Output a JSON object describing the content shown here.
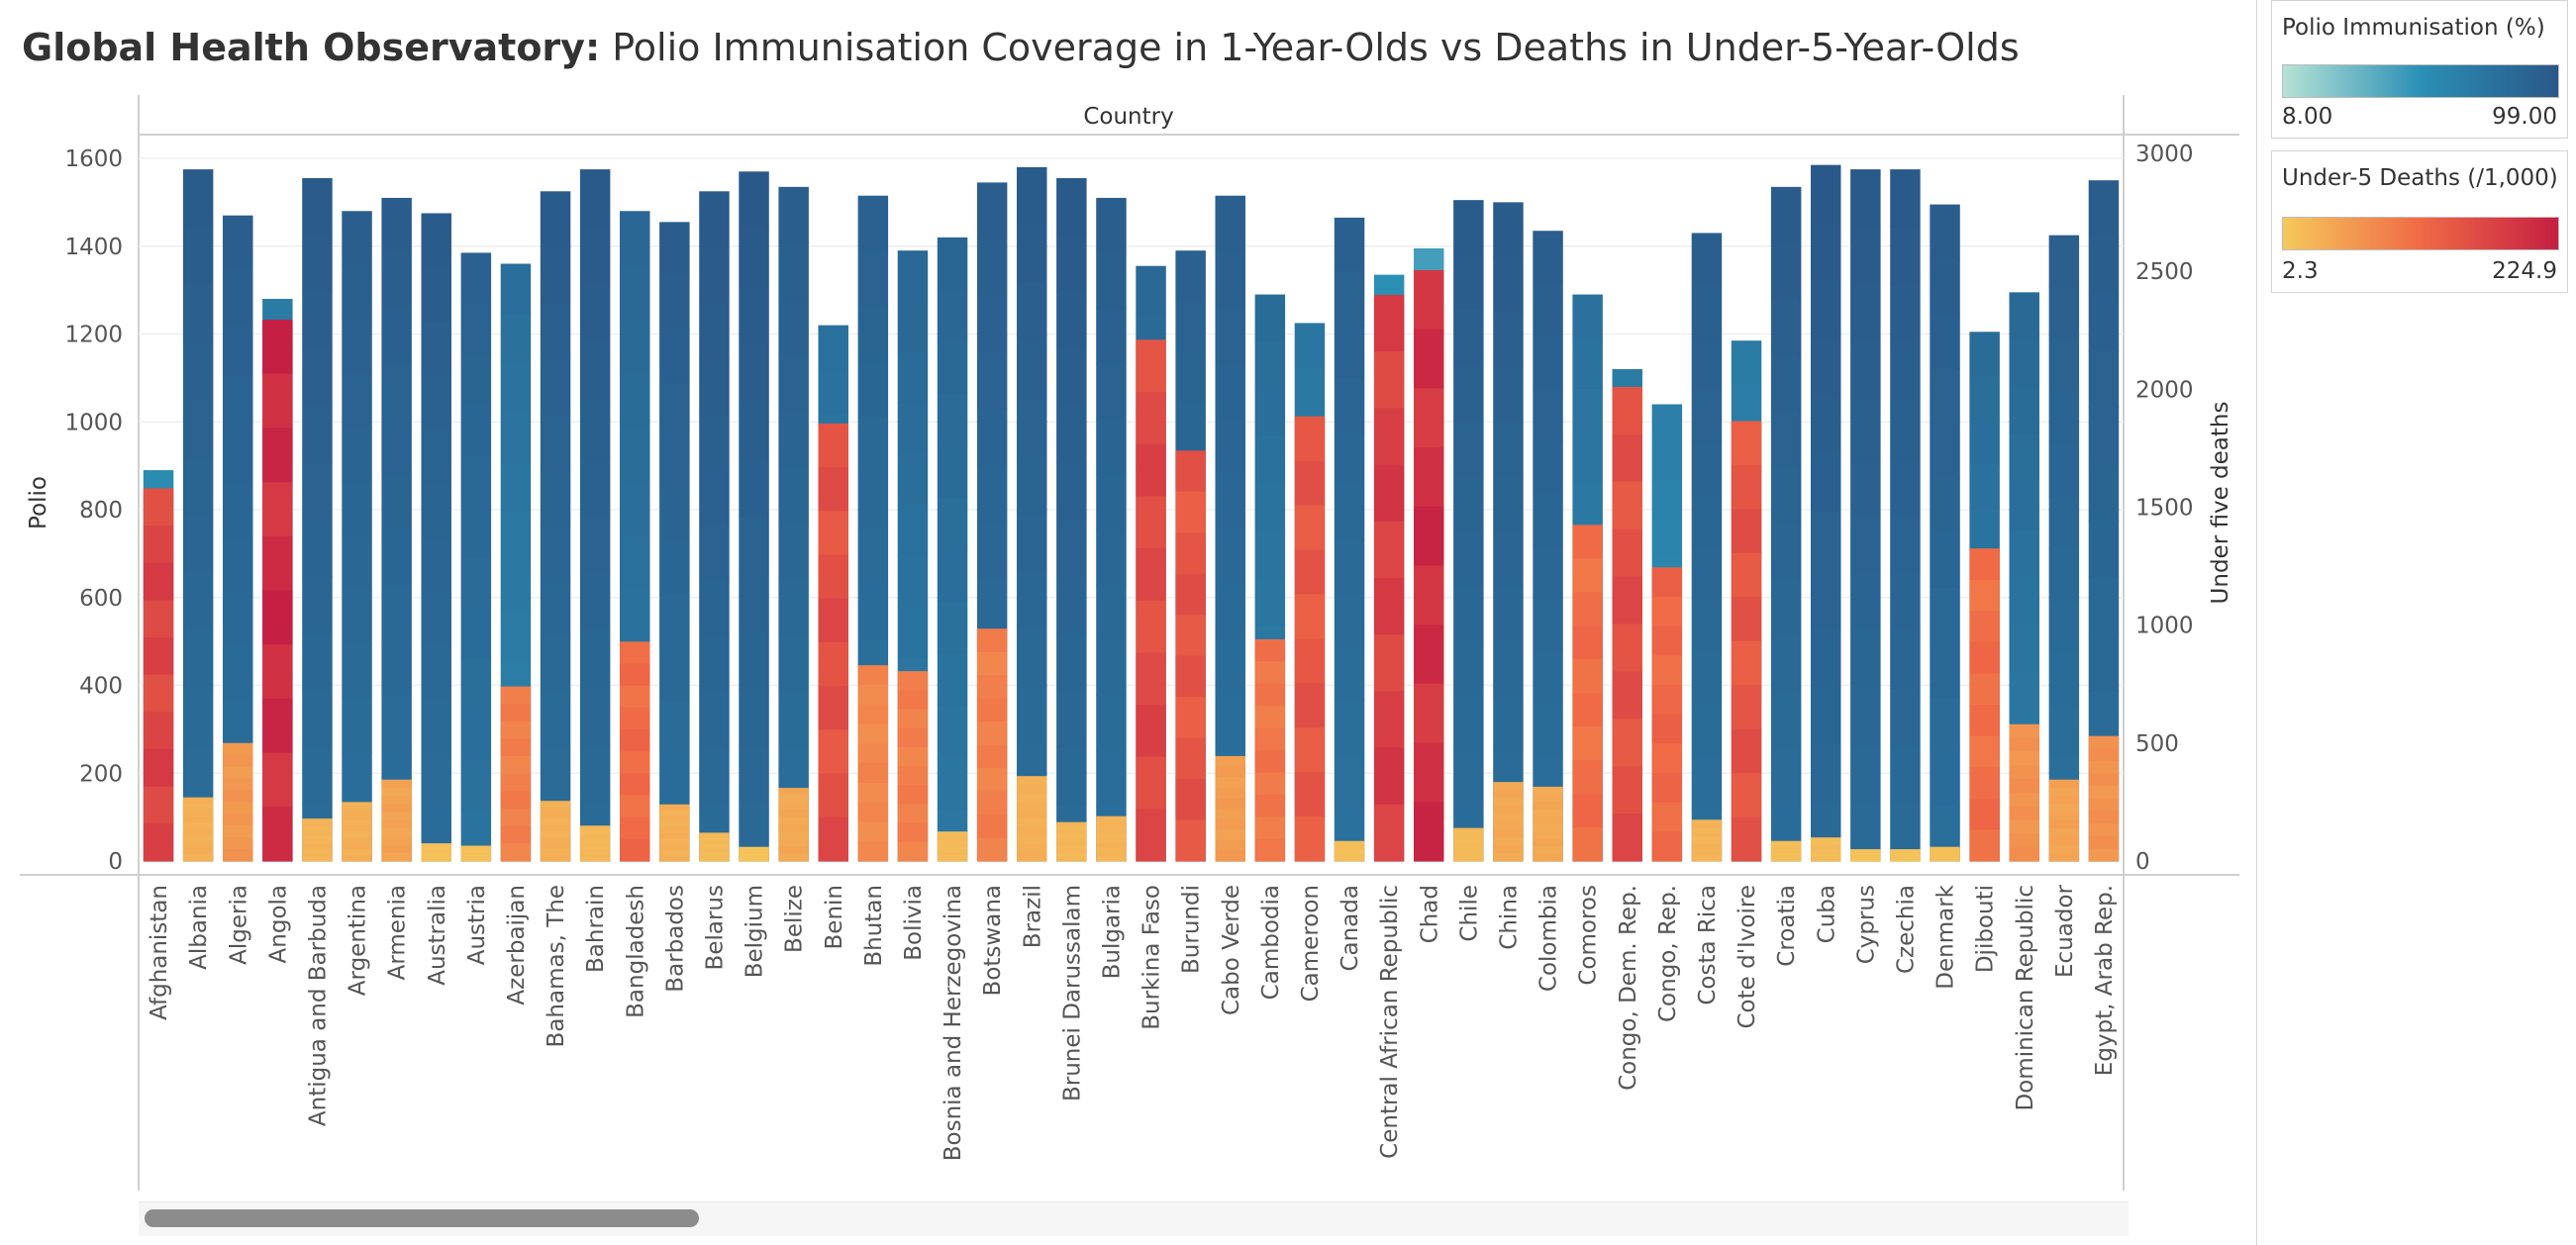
{
  "title": {
    "bold": "Global Health Observatory:",
    "rest": " Polio Immunisation Coverage in 1-Year-Olds vs Deaths in Under-5-Year-Olds"
  },
  "legend_polio": {
    "title": "Polio Immunisation (%)",
    "min": "8.00",
    "max": "99.00",
    "colors": [
      "#b7e3d6",
      "#2b8fb5",
      "#2a5888"
    ]
  },
  "legend_deaths": {
    "title": "Under-5 Deaths (/1,000)",
    "min": "2.3",
    "max": "224.9",
    "colors": [
      "#f5c95c",
      "#f06a46",
      "#c51f43"
    ]
  },
  "chart_data": {
    "type": "bar",
    "column_header": "Country",
    "ylabel_left": "Polio",
    "ylabel_right": "Under five deaths",
    "ylim_left": [
      0,
      1600
    ],
    "ylim_right": [
      0,
      3000
    ],
    "left_ticks": [
      "0",
      "200",
      "400",
      "600",
      "800",
      "1000",
      "1200",
      "1400",
      "1600"
    ],
    "right_ticks": [
      "0",
      "500",
      "1000",
      "1500",
      "2000",
      "2500",
      "3000"
    ],
    "categories": [
      "Afghanistan",
      "Albania",
      "Algeria",
      "Angola",
      "Antigua and Barbuda",
      "Argentina",
      "Armenia",
      "Australia",
      "Austria",
      "Azerbaijan",
      "Bahamas, The",
      "Bahrain",
      "Bangladesh",
      "Barbados",
      "Belarus",
      "Belgium",
      "Belize",
      "Benin",
      "Bhutan",
      "Bolivia",
      "Bosnia and Herzegovina",
      "Botswana",
      "Brazil",
      "Brunei Darussalam",
      "Bulgaria",
      "Burkina Faso",
      "Burundi",
      "Cabo Verde",
      "Cambodia",
      "Cameroon",
      "Canada",
      "Central African Republic",
      "Chad",
      "Chile",
      "China",
      "Colombia",
      "Comoros",
      "Congo, Dem. Rep.",
      "Congo, Rep.",
      "Costa Rica",
      "Cote d'Ivoire",
      "Croatia",
      "Cuba",
      "Cyprus",
      "Czechia",
      "Denmark",
      "Djibouti",
      "Dominican Republic",
      "Ecuador",
      "Egypt, Arab Rep."
    ],
    "series": [
      {
        "name": "Polio",
        "axis": "left",
        "values": [
          890,
          1575,
          1470,
          1280,
          1555,
          1480,
          1510,
          1475,
          1385,
          1360,
          1525,
          1575,
          1480,
          1455,
          1525,
          1570,
          1535,
          1220,
          1515,
          1390,
          1420,
          1545,
          1580,
          1555,
          1510,
          1355,
          1390,
          1515,
          1290,
          1225,
          1465,
          1335,
          1395,
          1505,
          1500,
          1435,
          1290,
          1120,
          1040,
          1430,
          1185,
          1535,
          1585,
          1575,
          1575,
          1495,
          1205,
          1295,
          1425,
          1550
        ],
        "mean_coverage_pct": [
          50,
          95,
          93,
          65,
          96,
          93,
          94,
          95,
          90,
          77,
          95,
          97,
          85,
          94,
          97,
          98,
          93,
          76,
          90,
          84,
          86,
          93,
          95,
          97,
          93,
          83,
          90,
          92,
          80,
          70,
          91,
          45,
          35,
          95,
          95,
          93,
          75,
          65,
          62,
          93,
          65,
          95,
          98,
          97,
          97,
          94,
          80,
          83,
          92,
          94
        ]
      },
      {
        "name": "Under five deaths",
        "axis": "right",
        "values": [
          1580,
          270,
          500,
          2295,
          180,
          250,
          345,
          75,
          65,
          740,
          255,
          150,
          930,
          240,
          120,
          60,
          310,
          1855,
          830,
          805,
          125,
          985,
          360,
          165,
          190,
          2210,
          1740,
          445,
          940,
          1885,
          85,
          2400,
          2505,
          140,
          335,
          315,
          1425,
          2010,
          1245,
          175,
          1865,
          85,
          100,
          50,
          50,
          60,
          1325,
          580,
          345,
          530
        ],
        "mean_deaths_per_1000": [
          150,
          15,
          35,
          200,
          12,
          15,
          25,
          5,
          5,
          60,
          15,
          10,
          85,
          15,
          8,
          4,
          20,
          130,
          50,
          60,
          8,
          60,
          15,
          10,
          12,
          140,
          120,
          30,
          70,
          115,
          6,
          160,
          190,
          8,
          20,
          20,
          80,
          130,
          90,
          12,
          120,
          6,
          7,
          4,
          4,
          5,
          80,
          40,
          25,
          40
        ]
      }
    ]
  }
}
